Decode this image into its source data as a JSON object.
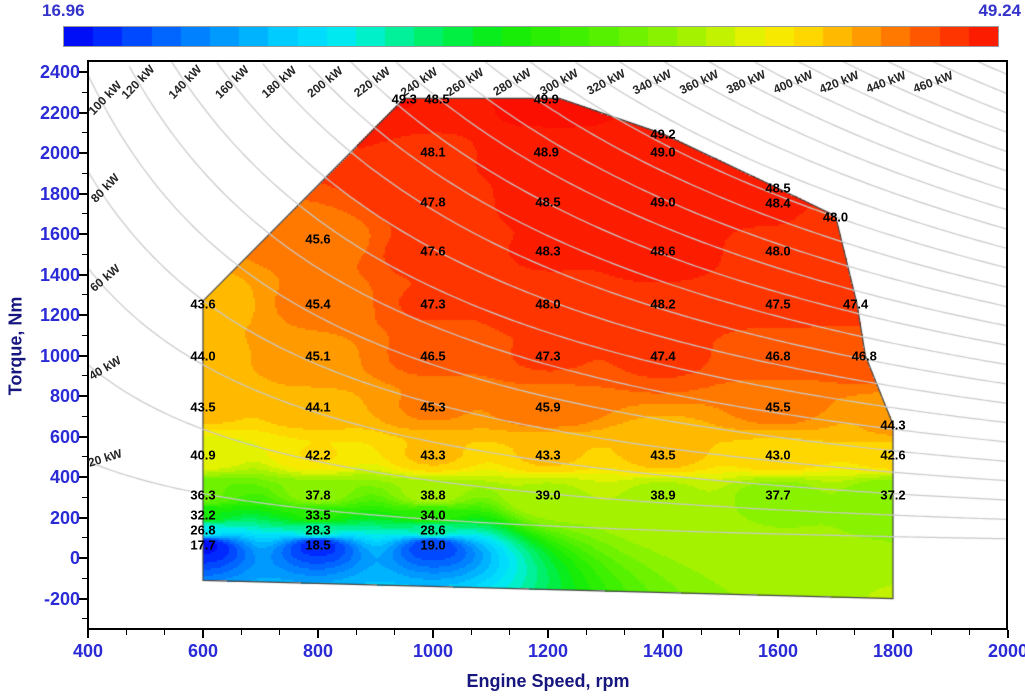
{
  "colorbar": {
    "min_label": "16.96",
    "max_label": "49.24"
  },
  "axes": {
    "x": {
      "title": "Engine Speed, rpm",
      "range": [
        400,
        2000
      ],
      "major_ticks": [
        400,
        600,
        800,
        1000,
        1200,
        1400,
        1600,
        1800,
        2000
      ],
      "minor_divisions": 3
    },
    "y": {
      "title": "Torque, Nm",
      "range": [
        -355,
        2455
      ],
      "major_ticks": [
        2400,
        2200,
        2000,
        1800,
        1600,
        1400,
        1200,
        1000,
        800,
        600,
        400,
        200,
        0,
        -200
      ],
      "minor_divisions": 2
    }
  },
  "chart_data": {
    "type": "heatmap",
    "value_range": [
      16.96,
      49.24
    ],
    "levels": 32,
    "x_unit": "rpm",
    "y_unit": "Nm",
    "legend_position": "top-colorbar",
    "grid": false,
    "envelope": [
      [
        600,
        -110
      ],
      [
        600,
        1270
      ],
      [
        950,
        2270
      ],
      [
        1220,
        2270
      ],
      [
        1400,
        2095
      ],
      [
        1590,
        1840
      ],
      [
        1700,
        1690
      ],
      [
        1737,
        1260
      ],
      [
        1752,
        1000
      ],
      [
        1800,
        660
      ],
      [
        1800,
        -200
      ]
    ],
    "points": [
      {
        "rpm": 950,
        "torque": 2265,
        "value": 49.3
      },
      {
        "rpm": 1007,
        "torque": 2265,
        "value": 48.5
      },
      {
        "rpm": 1197,
        "torque": 2265,
        "value": 49.9
      },
      {
        "rpm": 1400,
        "torque": 2095,
        "value": 49.2
      },
      {
        "rpm": 1000,
        "torque": 2005,
        "value": 48.1
      },
      {
        "rpm": 1197,
        "torque": 2005,
        "value": 48.9
      },
      {
        "rpm": 1400,
        "torque": 2005,
        "value": 49.0
      },
      {
        "rpm": 1600,
        "torque": 1830,
        "value": 48.5
      },
      {
        "rpm": 1000,
        "torque": 1760,
        "value": 47.8
      },
      {
        "rpm": 1200,
        "torque": 1760,
        "value": 48.5
      },
      {
        "rpm": 1400,
        "torque": 1760,
        "value": 49.0
      },
      {
        "rpm": 1600,
        "torque": 1755,
        "value": 48.4
      },
      {
        "rpm": 1700,
        "torque": 1685,
        "value": 48.0
      },
      {
        "rpm": 800,
        "torque": 1575,
        "value": 45.6
      },
      {
        "rpm": 1000,
        "torque": 1515,
        "value": 47.6
      },
      {
        "rpm": 1200,
        "torque": 1515,
        "value": 48.3
      },
      {
        "rpm": 1400,
        "torque": 1515,
        "value": 48.6
      },
      {
        "rpm": 1600,
        "torque": 1515,
        "value": 48.0
      },
      {
        "rpm": 600,
        "torque": 1255,
        "value": 43.6
      },
      {
        "rpm": 800,
        "torque": 1255,
        "value": 45.4
      },
      {
        "rpm": 1000,
        "torque": 1255,
        "value": 47.3
      },
      {
        "rpm": 1200,
        "torque": 1255,
        "value": 48.0
      },
      {
        "rpm": 1400,
        "torque": 1255,
        "value": 48.2
      },
      {
        "rpm": 1600,
        "torque": 1255,
        "value": 47.5
      },
      {
        "rpm": 1735,
        "torque": 1255,
        "value": 47.4
      },
      {
        "rpm": 600,
        "torque": 1000,
        "value": 44.0
      },
      {
        "rpm": 800,
        "torque": 1000,
        "value": 45.1
      },
      {
        "rpm": 1000,
        "torque": 1000,
        "value": 46.5
      },
      {
        "rpm": 1200,
        "torque": 1000,
        "value": 47.3
      },
      {
        "rpm": 1400,
        "torque": 1000,
        "value": 47.4
      },
      {
        "rpm": 1600,
        "torque": 1000,
        "value": 46.8
      },
      {
        "rpm": 1750,
        "torque": 1000,
        "value": 46.8
      },
      {
        "rpm": 600,
        "torque": 745,
        "value": 43.5
      },
      {
        "rpm": 800,
        "torque": 745,
        "value": 44.1
      },
      {
        "rpm": 1000,
        "torque": 745,
        "value": 45.3
      },
      {
        "rpm": 1200,
        "torque": 745,
        "value": 45.9
      },
      {
        "rpm": 1600,
        "torque": 745,
        "value": 45.5
      },
      {
        "rpm": 1800,
        "torque": 655,
        "value": 44.3
      },
      {
        "rpm": 600,
        "torque": 510,
        "value": 40.9
      },
      {
        "rpm": 800,
        "torque": 510,
        "value": 42.2
      },
      {
        "rpm": 1000,
        "torque": 510,
        "value": 43.3
      },
      {
        "rpm": 1200,
        "torque": 510,
        "value": 43.3
      },
      {
        "rpm": 1400,
        "torque": 510,
        "value": 43.5
      },
      {
        "rpm": 1600,
        "torque": 510,
        "value": 43.0
      },
      {
        "rpm": 1800,
        "torque": 510,
        "value": 42.6
      },
      {
        "rpm": 600,
        "torque": 310,
        "value": 36.3
      },
      {
        "rpm": 800,
        "torque": 310,
        "value": 37.8
      },
      {
        "rpm": 1000,
        "torque": 310,
        "value": 38.8
      },
      {
        "rpm": 1200,
        "torque": 310,
        "value": 39.0
      },
      {
        "rpm": 1400,
        "torque": 310,
        "value": 38.9
      },
      {
        "rpm": 1600,
        "torque": 310,
        "value": 37.7
      },
      {
        "rpm": 1800,
        "torque": 310,
        "value": 37.2
      },
      {
        "rpm": 600,
        "torque": 212,
        "value": 32.2
      },
      {
        "rpm": 800,
        "torque": 212,
        "value": 33.5
      },
      {
        "rpm": 1000,
        "torque": 212,
        "value": 34.0
      },
      {
        "rpm": 600,
        "torque": 138,
        "value": 26.8
      },
      {
        "rpm": 800,
        "torque": 138,
        "value": 28.3
      },
      {
        "rpm": 1000,
        "torque": 138,
        "value": 28.6
      },
      {
        "rpm": 600,
        "torque": 64,
        "value": 17.7
      },
      {
        "rpm": 800,
        "torque": 64,
        "value": 18.5
      },
      {
        "rpm": 1000,
        "torque": 64,
        "value": 19.0
      }
    ],
    "power_curves": {
      "unit_suffix": " kW",
      "labeled_powers": [
        20,
        40,
        60,
        80,
        100,
        120,
        140,
        160,
        180,
        200,
        220,
        240,
        260,
        280,
        300,
        320,
        340,
        360,
        380,
        400,
        420,
        440,
        460
      ],
      "extra_powers": [
        480,
        500
      ],
      "curve_constant": 9549.3
    },
    "colormap": [
      [
        0.0,
        "#0000F2"
      ],
      [
        0.04,
        "#0022FF"
      ],
      [
        0.09,
        "#0055FF"
      ],
      [
        0.14,
        "#0080FF"
      ],
      [
        0.19,
        "#00A8FF"
      ],
      [
        0.24,
        "#00D0FF"
      ],
      [
        0.29,
        "#00E8F8"
      ],
      [
        0.33,
        "#00F0C8"
      ],
      [
        0.37,
        "#00F288"
      ],
      [
        0.42,
        "#00EE44"
      ],
      [
        0.47,
        "#0EEC08"
      ],
      [
        0.53,
        "#33F000"
      ],
      [
        0.6,
        "#66F200"
      ],
      [
        0.66,
        "#99F200"
      ],
      [
        0.71,
        "#C8F200"
      ],
      [
        0.75,
        "#F2F200"
      ],
      [
        0.79,
        "#FFDE00"
      ],
      [
        0.83,
        "#FFB800"
      ],
      [
        0.87,
        "#FF9000"
      ],
      [
        0.91,
        "#FF6400"
      ],
      [
        0.95,
        "#FF3800"
      ],
      [
        1.0,
        "#FB0F00"
      ]
    ],
    "styles": {
      "curve_color": "#C9C9C9",
      "envelope_color": "#444444",
      "tick_color": "#000000",
      "tick_label_color": "#2B2BD6",
      "axis_title_color": "#16167E",
      "value_label_color": "#000000",
      "power_label_color": "#262626"
    }
  }
}
